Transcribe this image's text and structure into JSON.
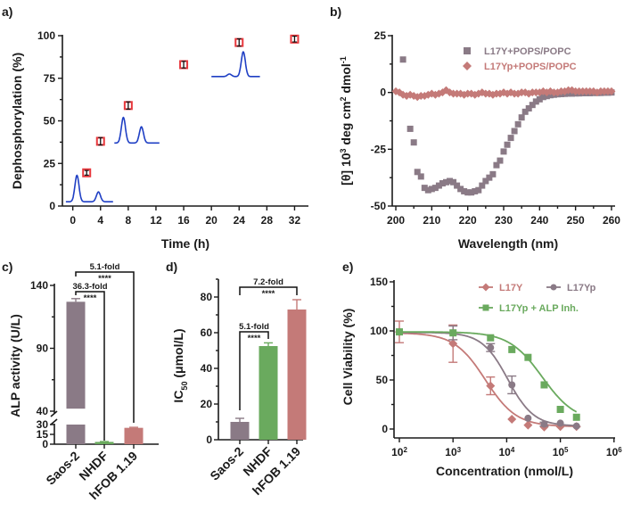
{
  "chart_data": [
    {
      "panel": "a)",
      "type": "scatter",
      "xlabel": "Time (h)",
      "ylabel": "Dephosphorylation (%)",
      "xlim": [
        -1.5,
        34
      ],
      "ylim": [
        0,
        100
      ],
      "xticks": [
        0,
        4,
        8,
        12,
        16,
        20,
        24,
        28,
        32
      ],
      "yticks": [
        0,
        25,
        50,
        75,
        100
      ],
      "marker_color": "#e8383d",
      "series": [
        {
          "name": "dephosphorylation",
          "x": [
            2,
            4,
            8,
            16,
            24,
            32
          ],
          "y": [
            19.5,
            38,
            59,
            83,
            96,
            98
          ],
          "yerr": [
            0.5,
            1.2,
            1.2,
            1.0,
            1.2,
            0.8
          ]
        }
      ],
      "insets": [
        {
          "name": "chromatogram-0h",
          "color": "#1f3fc4",
          "x_range": [
            -1,
            5.8
          ],
          "baseline": 2.5,
          "peaks": [
            {
              "x": 0.6,
              "h": 15.5
            },
            {
              "x": 3.7,
              "h": 5.8
            }
          ]
        },
        {
          "name": "chromatogram-8h",
          "color": "#1f3fc4",
          "x_range": [
            6,
            12.5
          ],
          "baseline": 37,
          "peaks": [
            {
              "x": 7.3,
              "h": 15
            },
            {
              "x": 9.9,
              "h": 9.5
            }
          ]
        },
        {
          "name": "chromatogram-24h",
          "color": "#1f3fc4",
          "x_range": [
            20,
            27
          ],
          "baseline": 76,
          "peaks": [
            {
              "x": 22.6,
              "h": 1.5
            },
            {
              "x": 24.6,
              "h": 14.5
            }
          ]
        }
      ]
    },
    {
      "panel": "b)",
      "type": "scatter",
      "xlabel": "Wavelength (nm)",
      "ylabel_parts": [
        "[θ]  10",
        "3",
        " deg cm",
        "2",
        " dmol",
        "-1"
      ],
      "xlim": [
        199,
        261
      ],
      "ylim": [
        -50,
        25
      ],
      "xticks": [
        200,
        210,
        220,
        230,
        240,
        250,
        260
      ],
      "yticks": [
        -50,
        -25,
        0,
        25
      ],
      "legend_position": "top-right",
      "series": [
        {
          "name": "L17Y+POPS/POPC",
          "marker": "square",
          "color": "#8a7a86",
          "x": [
            202,
            204,
            205,
            206,
            207,
            208,
            209,
            210,
            211,
            212,
            213,
            214,
            215,
            216,
            217,
            218,
            219,
            220,
            221,
            222,
            223,
            224,
            225,
            226,
            227,
            228,
            229,
            230,
            231,
            232,
            233,
            234,
            235,
            236,
            237,
            238,
            239,
            240,
            241,
            242,
            243,
            244,
            245,
            246,
            247,
            248,
            249,
            250,
            251,
            252,
            253,
            254,
            255,
            256,
            257,
            258,
            259,
            260
          ],
          "y": [
            14.5,
            -16,
            -22,
            -35,
            -37,
            -42,
            -43,
            -42.5,
            -42,
            -41,
            -40,
            -39.5,
            -39,
            -39.5,
            -41,
            -42.5,
            -43.5,
            -44,
            -44,
            -43.5,
            -43,
            -41,
            -39,
            -37.5,
            -36,
            -32,
            -30,
            -26,
            -23,
            -20,
            -17,
            -14,
            -11,
            -8.5,
            -7,
            -5.5,
            -4,
            -3,
            -2,
            -1.6,
            -1.2,
            -1,
            -0.8,
            -0.7,
            -0.6,
            -0.5,
            -0.5,
            -0.4,
            -0.4,
            -0.3,
            -0.3,
            -0.3,
            -0.2,
            -0.2,
            -0.2,
            -0.1,
            -0.1,
            0
          ]
        },
        {
          "name": "L17Yp+POPS/POPC",
          "marker": "diamond",
          "color": "#c47a78",
          "x": [
            200,
            201,
            202,
            203,
            204,
            205,
            206,
            207,
            208,
            209,
            210,
            211,
            212,
            213,
            214,
            215,
            216,
            217,
            218,
            219,
            220,
            221,
            222,
            223,
            224,
            225,
            226,
            227,
            228,
            229,
            230,
            231,
            232,
            233,
            234,
            235,
            236,
            237,
            238,
            239,
            240,
            241,
            242,
            243,
            244,
            245,
            246,
            247,
            248,
            249,
            250,
            251,
            252,
            253,
            254,
            255,
            256,
            257,
            258,
            259,
            260
          ],
          "y": [
            0.5,
            0,
            -1,
            -1.5,
            -1,
            -1.5,
            -2,
            -1.5,
            -1.5,
            -1,
            -0.5,
            -1,
            -0.5,
            0,
            1,
            0,
            -0.5,
            -0.5,
            -0.5,
            -1,
            -0.5,
            -0.5,
            -1,
            -0.5,
            0,
            -0.5,
            -0.5,
            -1,
            -0.5,
            -0.5,
            0,
            -0.5,
            0,
            -0.5,
            -0.5,
            0,
            0,
            -0.5,
            0,
            0,
            0,
            0.5,
            0,
            0.5,
            0,
            0,
            0.5,
            0.5,
            1,
            1,
            0.5,
            0.5,
            0.5,
            0.5,
            0.5,
            0.5,
            0,
            0.5,
            0.5,
            0.5,
            0.5
          ]
        }
      ]
    },
    {
      "panel": "c)",
      "type": "bar",
      "ylabel": "ALP activity (U/L)",
      "categories": [
        "Saos-2",
        "NHDF",
        "hFOB 1.19"
      ],
      "values": [
        127,
        3.5,
        25
      ],
      "errors": [
        2.5,
        0.5,
        0.8
      ],
      "colors": [
        "#8a7a86",
        "#6aaa5e",
        "#c47a78"
      ],
      "axis_break": [
        30,
        40
      ],
      "yticks_lower": [
        0,
        15,
        30
      ],
      "yticks_upper": [
        40,
        90,
        140
      ],
      "ylim": [
        0,
        140
      ],
      "annotations": [
        {
          "pair": [
            0,
            1
          ],
          "fold": "36.3-fold",
          "sig": "****"
        },
        {
          "pair": [
            0,
            2
          ],
          "fold": "5.1-fold",
          "sig": "****"
        }
      ]
    },
    {
      "panel": "d)",
      "type": "bar",
      "ylabel_main": "IC",
      "ylabel_sub": "50",
      "ylabel_rest": " (μmol/L)",
      "categories": [
        "Saos-2",
        "NHDF",
        "hFOB 1.19"
      ],
      "values": [
        10,
        52.5,
        73
      ],
      "errors": [
        2,
        1.8,
        5.5
      ],
      "colors": [
        "#8a7a86",
        "#6aaa5e",
        "#c47a78"
      ],
      "yticks": [
        0,
        20,
        40,
        60,
        80
      ],
      "ylim": [
        0,
        90
      ],
      "annotations": [
        {
          "pair": [
            0,
            1
          ],
          "fold": "5.1-fold",
          "sig": "****"
        },
        {
          "pair": [
            0,
            2
          ],
          "fold": "7.2-fold",
          "sig": "****"
        }
      ]
    },
    {
      "panel": "e)",
      "type": "line",
      "xscale": "log",
      "xlabel": "Concentration (nmol/L)",
      "ylabel": "Cell Viability (%)",
      "xlim_log10": [
        2,
        6
      ],
      "ylim": [
        -5,
        150
      ],
      "xticks_log10": [
        2,
        3,
        4,
        5,
        6
      ],
      "yticks": [
        0,
        50,
        100,
        150
      ],
      "legend_position": "top-right",
      "series": [
        {
          "name": "L17Y",
          "marker": "diamond",
          "color": "#c47a78",
          "x": [
            100,
            1000,
            5000,
            12500,
            25000,
            50000,
            100000,
            200000
          ],
          "y": [
            99,
            87,
            44,
            10,
            4,
            2,
            2.5,
            2.5
          ],
          "yerr": [
            11,
            19,
            9,
            0,
            0,
            0,
            0,
            0
          ],
          "fit": {
            "top": 98,
            "bottom": 2.5,
            "ic50": 4000,
            "hill": 1.5
          }
        },
        {
          "name": "L17Yp",
          "marker": "circle",
          "color": "#8a7a86",
          "x": [
            100,
            1000,
            5000,
            12500,
            25000,
            50000,
            100000,
            200000
          ],
          "y": [
            99,
            98,
            83,
            45,
            11,
            5,
            6,
            3
          ],
          "yerr": [
            0,
            7,
            4,
            9,
            0,
            2,
            0,
            0
          ],
          "fit": {
            "top": 98.5,
            "bottom": 3,
            "ic50": 10500,
            "hill": 1.8
          }
        },
        {
          "name": "L17Yp + ALP Inh.",
          "marker": "square",
          "color": "#6aaa5e",
          "x": [
            100,
            1000,
            5000,
            12500,
            25000,
            50000,
            100000,
            200000
          ],
          "y": [
            99,
            98,
            93,
            81,
            73,
            45,
            20,
            12
          ],
          "yerr": [
            0,
            0,
            0,
            0,
            0,
            0,
            0,
            0
          ],
          "fit": {
            "top": 99,
            "bottom": 7,
            "ic50": 46000,
            "hill": 1.4
          }
        }
      ]
    }
  ]
}
